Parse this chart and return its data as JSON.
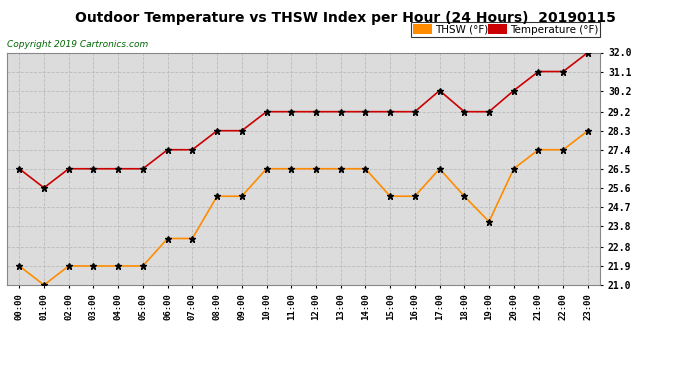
{
  "title": "Outdoor Temperature vs THSW Index per Hour (24 Hours)  20190115",
  "copyright": "Copyright 2019 Cartronics.com",
  "hours": [
    "00:00",
    "01:00",
    "02:00",
    "03:00",
    "04:00",
    "05:00",
    "06:00",
    "07:00",
    "08:00",
    "09:00",
    "10:00",
    "11:00",
    "12:00",
    "13:00",
    "14:00",
    "15:00",
    "16:00",
    "17:00",
    "18:00",
    "19:00",
    "20:00",
    "21:00",
    "22:00",
    "23:00"
  ],
  "thsw": [
    21.9,
    21.0,
    21.9,
    21.9,
    21.9,
    21.9,
    23.2,
    23.2,
    25.2,
    25.2,
    26.5,
    26.5,
    26.5,
    26.5,
    26.5,
    25.2,
    25.2,
    26.5,
    25.2,
    24.0,
    26.5,
    27.4,
    27.4,
    28.3
  ],
  "temp": [
    26.5,
    25.6,
    26.5,
    26.5,
    26.5,
    26.5,
    27.4,
    27.4,
    28.3,
    28.3,
    29.2,
    29.2,
    29.2,
    29.2,
    29.2,
    29.2,
    29.2,
    30.2,
    29.2,
    29.2,
    30.2,
    31.1,
    31.1,
    32.0
  ],
  "thsw_color": "#FF8C00",
  "temp_color": "#CC0000",
  "bg_color": "#FFFFFF",
  "plot_bg_color": "#DCDCDC",
  "grid_color": "#BBBBBB",
  "ylim_min": 21.0,
  "ylim_max": 32.0,
  "yticks": [
    21.0,
    21.9,
    22.8,
    23.8,
    24.7,
    25.6,
    26.5,
    27.4,
    28.3,
    29.2,
    30.2,
    31.1,
    32.0
  ],
  "thsw_label": "THSW (°F)",
  "temp_label": "Temperature (°F)"
}
